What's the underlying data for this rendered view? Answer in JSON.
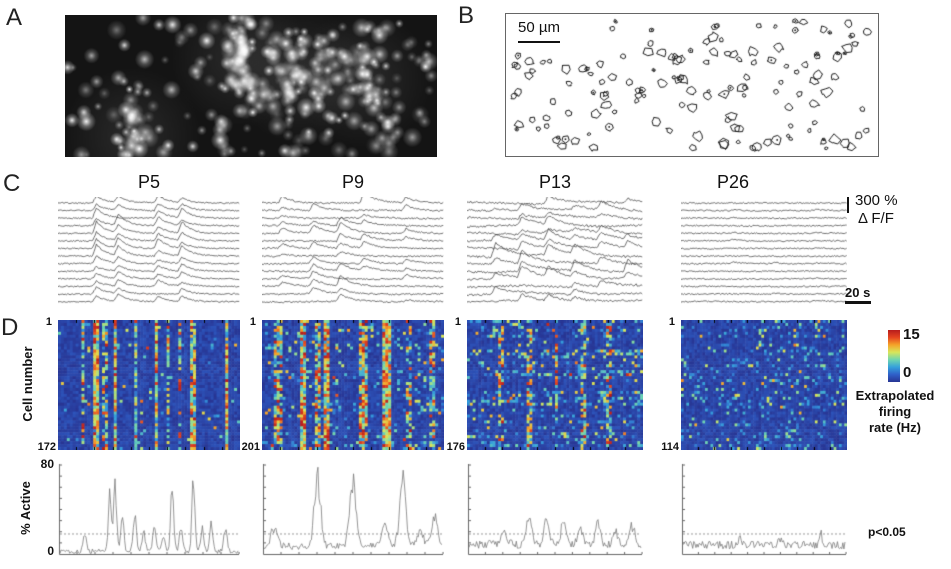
{
  "panels": {
    "a": {
      "label": "A"
    },
    "b": {
      "label": "B",
      "scale_bar": "50 µm"
    },
    "c": {
      "label": "C",
      "ages": [
        "P5",
        "P9",
        "P13",
        "P26"
      ],
      "amplitude_scale": "300 %",
      "amplitude_unit": "Δ F/F",
      "time_scale": "20 s"
    },
    "d": {
      "label": "D",
      "y_axis": "Cell number",
      "cell_start": [
        "1",
        "1",
        "1",
        "1"
      ],
      "cell_end": [
        "172",
        "201",
        "176",
        "114"
      ],
      "colorbar": {
        "max": "15",
        "min": "0",
        "caption": [
          "Extrapolated",
          "firing",
          "rate (Hz)"
        ]
      },
      "active": {
        "y_axis": "% Active",
        "y_max": "80",
        "y_min": "0",
        "significance": "p<0.05"
      }
    }
  },
  "chart_data": {
    "type": "multi",
    "ages": [
      "P5",
      "P9",
      "P13",
      "P26"
    ],
    "traces": {
      "n_traces": 14,
      "P5": {
        "events": [
          [
            0.2,
            1.0
          ],
          [
            0.32,
            0.95
          ],
          [
            0.54,
            0.9
          ],
          [
            0.67,
            0.95
          ]
        ],
        "participation": 0.95,
        "amp": 7,
        "decay": 9,
        "noise": 0.7,
        "wander": 0.2,
        "bigRows": []
      },
      "P9": {
        "events": [
          [
            0.1,
            0.5
          ],
          [
            0.27,
            0.7
          ],
          [
            0.42,
            0.9
          ],
          [
            0.55,
            0.6
          ],
          [
            0.78,
            0.4
          ]
        ],
        "participation": 0.6,
        "amp": 7,
        "decay": 11,
        "noise": 0.8,
        "wander": 0.4,
        "bigRows": [
          0
        ]
      },
      "P13": {
        "events": [
          [
            0.15,
            0.6
          ],
          [
            0.3,
            0.7
          ],
          [
            0.45,
            0.8
          ],
          [
            0.6,
            0.6
          ],
          [
            0.75,
            0.8
          ],
          [
            0.9,
            0.5
          ]
        ],
        "participation": 0.55,
        "amp": 8,
        "decay": 15,
        "noise": 1.0,
        "wander": 1.2,
        "bigRows": [
          7,
          8,
          9
        ]
      },
      "P26": {
        "events": [
          [
            0.3,
            0.25
          ],
          [
            0.55,
            0.3
          ],
          [
            0.8,
            0.25
          ]
        ],
        "participation": 0.25,
        "amp": 3.5,
        "decay": 8,
        "noise": 0.7,
        "wander": 0.2,
        "bigRows": []
      }
    },
    "heatmaps": {
      "n_cells": [
        172,
        201,
        176,
        114
      ],
      "value_range": [
        0,
        15
      ],
      "colormap": "jet",
      "P5": {
        "bands": [
          [
            0.13,
            0.35
          ],
          [
            0.2,
            0.8
          ],
          [
            0.25,
            0.45
          ],
          [
            0.31,
            0.65
          ],
          [
            0.42,
            0.5
          ],
          [
            0.53,
            0.75
          ],
          [
            0.6,
            0.45
          ],
          [
            0.66,
            0.3
          ],
          [
            0.73,
            0.55
          ],
          [
            0.92,
            0.7
          ]
        ],
        "band_w": 0.012,
        "speckle": 0.028,
        "row_var": 0.4,
        "vmax": 15
      },
      "P9": {
        "bands": [
          [
            0.08,
            0.45
          ],
          [
            0.22,
            0.75
          ],
          [
            0.3,
            0.5
          ],
          [
            0.35,
            0.8
          ],
          [
            0.55,
            0.45
          ],
          [
            0.68,
            0.8
          ],
          [
            0.8,
            0.35
          ],
          [
            0.93,
            0.4
          ]
        ],
        "band_w": 0.02,
        "speckle": 0.09,
        "row_var": 0.8,
        "vmax": 15
      },
      "P13": {
        "bands": [
          [
            0.18,
            0.3
          ],
          [
            0.35,
            0.35
          ],
          [
            0.5,
            0.3
          ],
          [
            0.65,
            0.35
          ],
          [
            0.8,
            0.3
          ]
        ],
        "band_w": 0.016,
        "speckle": 0.16,
        "row_var": 1.3,
        "vmax": 15
      },
      "P26": {
        "bands": [],
        "band_w": 0.012,
        "speckle": 0.12,
        "row_var": 0.6,
        "vmax": 12
      }
    },
    "active": {
      "ylim": [
        0,
        80
      ],
      "threshold": 18,
      "P5": {
        "baseline": 2.5,
        "noise": 2.0,
        "peak_w": 0.012,
        "peaks": [
          [
            0.14,
            18
          ],
          [
            0.28,
            50
          ],
          [
            0.31,
            56
          ],
          [
            0.35,
            30
          ],
          [
            0.42,
            34
          ],
          [
            0.47,
            18
          ],
          [
            0.53,
            25
          ],
          [
            0.58,
            15
          ],
          [
            0.63,
            60
          ],
          [
            0.68,
            25
          ],
          [
            0.75,
            70
          ],
          [
            0.8,
            20
          ],
          [
            0.85,
            25
          ],
          [
            0.93,
            22
          ]
        ]
      },
      "P9": {
        "baseline": 7,
        "noise": 3.0,
        "peak_w": 0.025,
        "peaks": [
          [
            0.06,
            18
          ],
          [
            0.3,
            60
          ],
          [
            0.5,
            58
          ],
          [
            0.68,
            20
          ],
          [
            0.78,
            56
          ],
          [
            0.88,
            14
          ],
          [
            0.96,
            24
          ]
        ]
      },
      "P13": {
        "baseline": 9,
        "noise": 4.0,
        "peak_w": 0.02,
        "peaks": [
          [
            0.2,
            12
          ],
          [
            0.35,
            22
          ],
          [
            0.45,
            20
          ],
          [
            0.55,
            18
          ],
          [
            0.65,
            14
          ],
          [
            0.75,
            20
          ],
          [
            0.85,
            12
          ],
          [
            0.95,
            16
          ]
        ]
      },
      "P26": {
        "baseline": 8,
        "noise": 3.5,
        "peak_w": 0.015,
        "peaks": [
          [
            0.35,
            8
          ],
          [
            0.6,
            6
          ],
          [
            0.85,
            10
          ]
        ]
      }
    },
    "colorbar": {
      "min": 0,
      "max": 15,
      "colors_bottom_to_top": [
        "#283593",
        "#2f5fc8",
        "#35a0dc",
        "#6fd6b0",
        "#d8e65a",
        "#f5a329",
        "#e5441f",
        "#b71c1c"
      ]
    }
  }
}
